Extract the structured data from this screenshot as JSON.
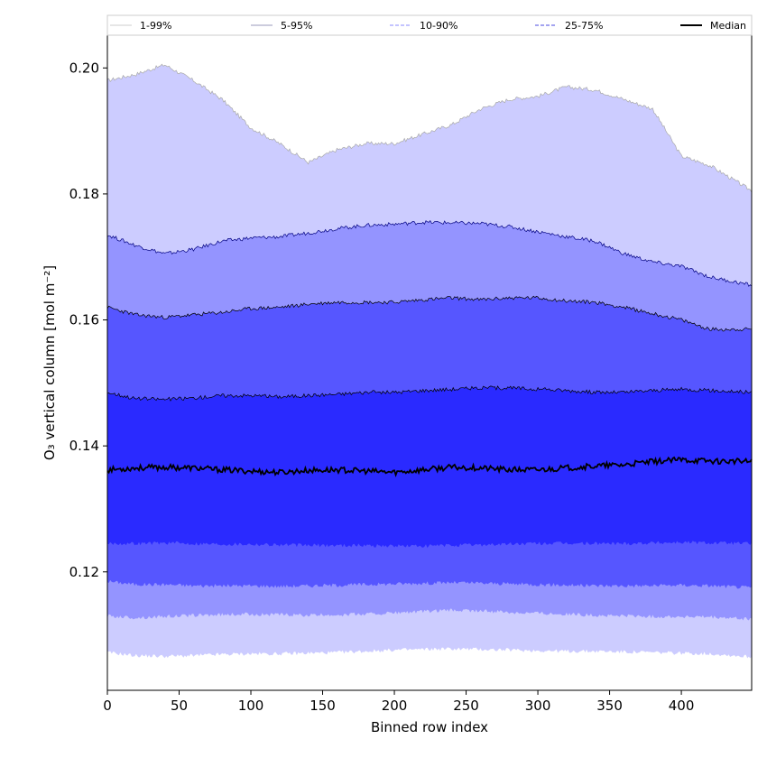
{
  "chart_data": {
    "type": "area",
    "xlabel": "Binned row index",
    "ylabel": "O₃ vertical column [mol m⁻²]",
    "xlim": [
      0,
      449
    ],
    "ylim": [
      0.1012,
      0.2052
    ],
    "xticks": [
      0,
      50,
      100,
      150,
      200,
      250,
      300,
      350,
      400
    ],
    "yticks": [
      0.12,
      0.14,
      0.16,
      0.18,
      0.2
    ],
    "ytick_labels": [
      "0.12",
      "0.14",
      "0.16",
      "0.18",
      "0.20"
    ],
    "legend_position": "top (above plot area)",
    "x": [
      0,
      20,
      40,
      60,
      80,
      100,
      120,
      140,
      160,
      180,
      200,
      220,
      240,
      260,
      280,
      300,
      320,
      340,
      360,
      380,
      400,
      420,
      449
    ],
    "bands": [
      {
        "name": "1-99%",
        "color": "#ccccff",
        "edge": "#aaaaaa",
        "upper": [
          0.198,
          0.199,
          0.2005,
          0.198,
          0.195,
          0.1905,
          0.188,
          0.185,
          0.187,
          0.188,
          0.188,
          0.1895,
          0.191,
          0.1935,
          0.195,
          0.1955,
          0.197,
          0.1965,
          0.195,
          0.1935,
          0.186,
          0.1845,
          0.1805
        ],
        "lower": [
          0.1072,
          0.1067,
          0.1066,
          0.1067,
          0.1069,
          0.107,
          0.107,
          0.1071,
          0.1072,
          0.1074,
          0.1076,
          0.1077,
          0.1078,
          0.1077,
          0.1076,
          0.1075,
          0.1074,
          0.1074,
          0.1073,
          0.1072,
          0.1071,
          0.107,
          0.1065
        ]
      },
      {
        "name": "5-95%",
        "color": "#9494ff",
        "edge": "#000080",
        "upper": [
          0.1735,
          0.1718,
          0.1705,
          0.1712,
          0.1725,
          0.173,
          0.1732,
          0.1738,
          0.1745,
          0.175,
          0.1752,
          0.1755,
          0.1754,
          0.1753,
          0.1748,
          0.174,
          0.1732,
          0.1725,
          0.1705,
          0.1692,
          0.1685,
          0.1668,
          0.1655
        ],
        "lower": [
          0.113,
          0.1127,
          0.1129,
          0.1131,
          0.1132,
          0.1133,
          0.1132,
          0.1131,
          0.1132,
          0.1133,
          0.1135,
          0.1137,
          0.1139,
          0.1138,
          0.1136,
          0.1135,
          0.1133,
          0.1131,
          0.113,
          0.1129,
          0.1129,
          0.1128,
          0.1125
        ]
      },
      {
        "name": "10-90%",
        "color": "#5656ff",
        "edge": "#000000",
        "upper": [
          0.162,
          0.1608,
          0.1604,
          0.1608,
          0.1612,
          0.1618,
          0.162,
          0.1625,
          0.1628,
          0.1628,
          0.1628,
          0.1632,
          0.1635,
          0.1632,
          0.1635,
          0.1635,
          0.163,
          0.1628,
          0.162,
          0.161,
          0.16,
          0.1585,
          0.1585
        ],
        "lower": [
          0.1185,
          0.118,
          0.118,
          0.1178,
          0.1178,
          0.1178,
          0.1177,
          0.1178,
          0.1179,
          0.118,
          0.1181,
          0.1182,
          0.1183,
          0.1182,
          0.1181,
          0.118,
          0.1179,
          0.1178,
          0.1178,
          0.1178,
          0.1179,
          0.1178,
          0.1175
        ]
      },
      {
        "name": "25-75%",
        "color": "#2a2aff",
        "edge": "#000000",
        "upper": [
          0.1485,
          0.1475,
          0.1474,
          0.1476,
          0.148,
          0.148,
          0.1478,
          0.148,
          0.1482,
          0.1485,
          0.1485,
          0.1488,
          0.149,
          0.1492,
          0.1492,
          0.149,
          0.1488,
          0.1485,
          0.1485,
          0.1488,
          0.149,
          0.1488,
          0.1485
        ],
        "lower": [
          0.1245,
          0.1245,
          0.1246,
          0.1245,
          0.1244,
          0.1244,
          0.1243,
          0.1242,
          0.1242,
          0.1242,
          0.1241,
          0.1241,
          0.1242,
          0.1243,
          0.1244,
          0.1245,
          0.1245,
          0.1245,
          0.1245,
          0.1246,
          0.1247,
          0.1246,
          0.1245
        ]
      }
    ],
    "median": {
      "name": "Median",
      "color": "#000000",
      "values": [
        0.1362,
        0.1365,
        0.1366,
        0.1365,
        0.1362,
        0.136,
        0.1358,
        0.1361,
        0.1362,
        0.136,
        0.1358,
        0.1362,
        0.1366,
        0.1365,
        0.1362,
        0.1362,
        0.1365,
        0.1368,
        0.137,
        0.1375,
        0.1378,
        0.1376,
        0.1375
      ]
    },
    "legend": [
      {
        "label": "1-99%",
        "color": "#cccccc",
        "style": "thin"
      },
      {
        "label": "5-95%",
        "color": "#9999bb",
        "style": "thin"
      },
      {
        "label": "10-90%",
        "color": "#8a8aff",
        "style": "dashed"
      },
      {
        "label": "25-75%",
        "color": "#4a4ae0",
        "style": "dashed"
      },
      {
        "label": "Median",
        "color": "#000000",
        "style": "solid"
      }
    ]
  }
}
